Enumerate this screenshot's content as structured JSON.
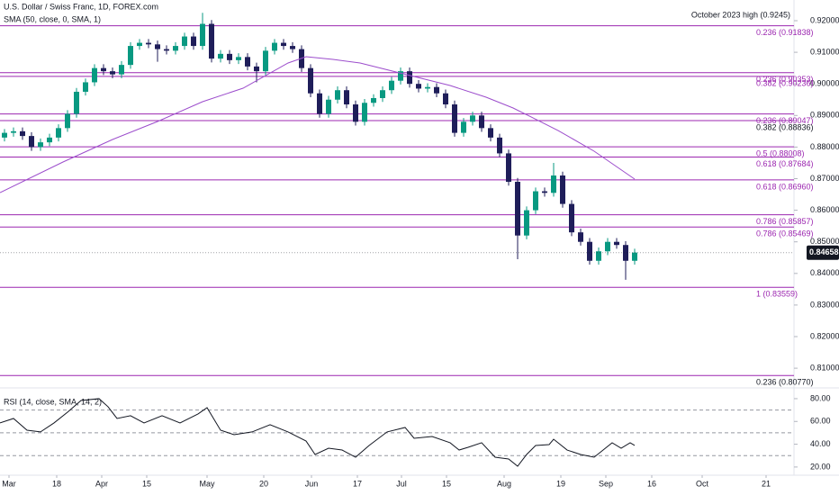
{
  "chart_data": {
    "type": "candlestick",
    "title": "U.S. Dollar / Swiss Franc, 1D, FOREX.com",
    "up_color": "#089981",
    "down_color": "#1f1e5a",
    "xlim": [
      -1,
      175
    ],
    "ylim": [
      0.80405,
      0.92655
    ],
    "yticks": [
      {
        "value": 0.92,
        "label": "0.92000"
      },
      {
        "value": 0.91,
        "label": "0.91000"
      },
      {
        "value": 0.9,
        "label": "0.90000"
      },
      {
        "value": 0.89,
        "label": "0.89000"
      },
      {
        "value": 0.88,
        "label": "0.88000"
      },
      {
        "value": 0.87,
        "label": "0.87000"
      },
      {
        "value": 0.86,
        "label": "0.86000"
      },
      {
        "value": 0.85,
        "label": "0.85000"
      },
      {
        "value": 0.84,
        "label": "0.84000"
      },
      {
        "value": 0.83,
        "label": "0.83000"
      },
      {
        "value": 0.82,
        "label": "0.82000"
      },
      {
        "value": 0.81,
        "label": "0.81000"
      }
    ],
    "xticks": [
      {
        "value": 1,
        "label": "Mar"
      },
      {
        "value": 11.6,
        "label": "18"
      },
      {
        "value": 21.6,
        "label": "Apr"
      },
      {
        "value": 31.6,
        "label": "15"
      },
      {
        "value": 45,
        "label": "May"
      },
      {
        "value": 57.6,
        "label": "20"
      },
      {
        "value": 68.2,
        "label": "Jun"
      },
      {
        "value": 78.4,
        "label": "17"
      },
      {
        "value": 88.2,
        "label": "Jul"
      },
      {
        "value": 98.2,
        "label": "15"
      },
      {
        "value": 111,
        "label": "Aug"
      },
      {
        "value": 123.6,
        "label": "19"
      },
      {
        "value": 133.6,
        "label": "Sep"
      },
      {
        "value": 143.8,
        "label": "16"
      },
      {
        "value": 155,
        "label": "Oct"
      },
      {
        "value": 169.2,
        "label": "21"
      }
    ],
    "candles": [
      {
        "x": 0,
        "open": 0.883,
        "high": 0.8857,
        "low": 0.8818,
        "close": 0.8845
      },
      {
        "x": 2,
        "open": 0.8845,
        "high": 0.8862,
        "low": 0.8833,
        "close": 0.885
      },
      {
        "x": 4,
        "open": 0.885,
        "high": 0.8862,
        "low": 0.8823,
        "close": 0.8835
      },
      {
        "x": 6,
        "open": 0.8835,
        "high": 0.8847,
        "low": 0.8788,
        "close": 0.88
      },
      {
        "x": 8,
        "open": 0.88,
        "high": 0.8827,
        "low": 0.8788,
        "close": 0.8815
      },
      {
        "x": 10,
        "open": 0.8815,
        "high": 0.8842,
        "low": 0.8803,
        "close": 0.883
      },
      {
        "x": 12,
        "open": 0.883,
        "high": 0.8872,
        "low": 0.8818,
        "close": 0.886
      },
      {
        "x": 14,
        "open": 0.886,
        "high": 0.8917,
        "low": 0.8848,
        "close": 0.8905
      },
      {
        "x": 16,
        "open": 0.8905,
        "high": 0.8987,
        "low": 0.8893,
        "close": 0.8975
      },
      {
        "x": 18,
        "open": 0.8975,
        "high": 0.9017,
        "low": 0.8963,
        "close": 0.9005
      },
      {
        "x": 20,
        "open": 0.9005,
        "high": 0.9062,
        "low": 0.8993,
        "close": 0.905
      },
      {
        "x": 22,
        "open": 0.905,
        "high": 0.9062,
        "low": 0.9028,
        "close": 0.904
      },
      {
        "x": 24,
        "open": 0.904,
        "high": 0.9052,
        "low": 0.9018,
        "close": 0.903
      },
      {
        "x": 26,
        "open": 0.903,
        "high": 0.9072,
        "low": 0.9018,
        "close": 0.906
      },
      {
        "x": 28,
        "open": 0.906,
        "high": 0.9132,
        "low": 0.9048,
        "close": 0.912
      },
      {
        "x": 30,
        "open": 0.912,
        "high": 0.9142,
        "low": 0.9108,
        "close": 0.913
      },
      {
        "x": 32,
        "open": 0.913,
        "high": 0.9142,
        "low": 0.9113,
        "close": 0.9125
      },
      {
        "x": 34,
        "open": 0.9125,
        "high": 0.9137,
        "low": 0.907,
        "close": 0.911
      },
      {
        "x": 36,
        "open": 0.911,
        "high": 0.9122,
        "low": 0.9093,
        "close": 0.9105
      },
      {
        "x": 38,
        "open": 0.9105,
        "high": 0.9132,
        "low": 0.9093,
        "close": 0.912
      },
      {
        "x": 40,
        "open": 0.912,
        "high": 0.9162,
        "low": 0.9108,
        "close": 0.915
      },
      {
        "x": 42,
        "open": 0.915,
        "high": 0.9162,
        "low": 0.9108,
        "close": 0.912
      },
      {
        "x": 44,
        "open": 0.912,
        "high": 0.9225,
        "low": 0.9108,
        "close": 0.919
      },
      {
        "x": 46,
        "open": 0.919,
        "high": 0.9202,
        "low": 0.9068,
        "close": 0.908
      },
      {
        "x": 48,
        "open": 0.908,
        "high": 0.9107,
        "low": 0.9068,
        "close": 0.9095
      },
      {
        "x": 50,
        "open": 0.9095,
        "high": 0.9107,
        "low": 0.9063,
        "close": 0.9075
      },
      {
        "x": 52,
        "open": 0.9075,
        "high": 0.9097,
        "low": 0.9063,
        "close": 0.9085
      },
      {
        "x": 54,
        "open": 0.9085,
        "high": 0.9097,
        "low": 0.9043,
        "close": 0.9055
      },
      {
        "x": 56,
        "open": 0.9055,
        "high": 0.9067,
        "low": 0.9005,
        "close": 0.904
      },
      {
        "x": 58,
        "open": 0.904,
        "high": 0.9117,
        "low": 0.9028,
        "close": 0.9105
      },
      {
        "x": 60,
        "open": 0.9105,
        "high": 0.9142,
        "low": 0.9093,
        "close": 0.913
      },
      {
        "x": 62,
        "open": 0.913,
        "high": 0.9142,
        "low": 0.9108,
        "close": 0.912
      },
      {
        "x": 64,
        "open": 0.912,
        "high": 0.9132,
        "low": 0.9098,
        "close": 0.911
      },
      {
        "x": 66,
        "open": 0.911,
        "high": 0.9122,
        "low": 0.9038,
        "close": 0.905
      },
      {
        "x": 68,
        "open": 0.905,
        "high": 0.9062,
        "low": 0.8958,
        "close": 0.897
      },
      {
        "x": 70,
        "open": 0.897,
        "high": 0.8982,
        "low": 0.8893,
        "close": 0.8905
      },
      {
        "x": 72,
        "open": 0.8905,
        "high": 0.8962,
        "low": 0.8893,
        "close": 0.895
      },
      {
        "x": 74,
        "open": 0.895,
        "high": 0.8992,
        "low": 0.8938,
        "close": 0.898
      },
      {
        "x": 76,
        "open": 0.898,
        "high": 0.8992,
        "low": 0.8923,
        "close": 0.8935
      },
      {
        "x": 78,
        "open": 0.8935,
        "high": 0.8947,
        "low": 0.8868,
        "close": 0.888
      },
      {
        "x": 80,
        "open": 0.888,
        "high": 0.8952,
        "low": 0.8868,
        "close": 0.894
      },
      {
        "x": 82,
        "open": 0.894,
        "high": 0.8967,
        "low": 0.8928,
        "close": 0.8955
      },
      {
        "x": 84,
        "open": 0.8955,
        "high": 0.8992,
        "low": 0.8943,
        "close": 0.898
      },
      {
        "x": 86,
        "open": 0.898,
        "high": 0.9022,
        "low": 0.8968,
        "close": 0.901
      },
      {
        "x": 88,
        "open": 0.901,
        "high": 0.9052,
        "low": 0.8998,
        "close": 0.904
      },
      {
        "x": 90,
        "open": 0.904,
        "high": 0.9052,
        "low": 0.8988,
        "close": 0.9
      },
      {
        "x": 92,
        "open": 0.9,
        "high": 0.9012,
        "low": 0.8973,
        "close": 0.8985
      },
      {
        "x": 94,
        "open": 0.8985,
        "high": 0.9002,
        "low": 0.8973,
        "close": 0.899
      },
      {
        "x": 96,
        "open": 0.899,
        "high": 0.9002,
        "low": 0.8958,
        "close": 0.897
      },
      {
        "x": 98,
        "open": 0.897,
        "high": 0.8982,
        "low": 0.8923,
        "close": 0.8935
      },
      {
        "x": 100,
        "open": 0.8935,
        "high": 0.8947,
        "low": 0.8833,
        "close": 0.8845
      },
      {
        "x": 102,
        "open": 0.8845,
        "high": 0.8892,
        "low": 0.8833,
        "close": 0.888
      },
      {
        "x": 104,
        "open": 0.888,
        "high": 0.8912,
        "low": 0.8868,
        "close": 0.89
      },
      {
        "x": 106,
        "open": 0.89,
        "high": 0.8912,
        "low": 0.8848,
        "close": 0.886
      },
      {
        "x": 108,
        "open": 0.886,
        "high": 0.8872,
        "low": 0.8818,
        "close": 0.883
      },
      {
        "x": 110,
        "open": 0.883,
        "high": 0.8842,
        "low": 0.8768,
        "close": 0.878
      },
      {
        "x": 112,
        "open": 0.878,
        "high": 0.8792,
        "low": 0.8678,
        "close": 0.869
      },
      {
        "x": 114,
        "open": 0.869,
        "high": 0.8702,
        "low": 0.8445,
        "close": 0.852
      },
      {
        "x": 116,
        "open": 0.852,
        "high": 0.8612,
        "low": 0.8508,
        "close": 0.86
      },
      {
        "x": 118,
        "open": 0.86,
        "high": 0.8672,
        "low": 0.8588,
        "close": 0.866
      },
      {
        "x": 120,
        "open": 0.866,
        "high": 0.8672,
        "low": 0.8643,
        "close": 0.8655
      },
      {
        "x": 122,
        "open": 0.8655,
        "high": 0.875,
        "low": 0.8643,
        "close": 0.871
      },
      {
        "x": 124,
        "open": 0.871,
        "high": 0.8722,
        "low": 0.8608,
        "close": 0.862
      },
      {
        "x": 126,
        "open": 0.862,
        "high": 0.8632,
        "low": 0.8518,
        "close": 0.853
      },
      {
        "x": 128,
        "open": 0.853,
        "high": 0.8542,
        "low": 0.8488,
        "close": 0.85
      },
      {
        "x": 130,
        "open": 0.85,
        "high": 0.8512,
        "low": 0.8428,
        "close": 0.844
      },
      {
        "x": 132,
        "open": 0.844,
        "high": 0.8482,
        "low": 0.8428,
        "close": 0.847
      },
      {
        "x": 134,
        "open": 0.847,
        "high": 0.8512,
        "low": 0.8458,
        "close": 0.85
      },
      {
        "x": 136,
        "open": 0.85,
        "high": 0.8512,
        "low": 0.8478,
        "close": 0.849
      },
      {
        "x": 138,
        "open": 0.849,
        "high": 0.8502,
        "low": 0.838,
        "close": 0.844
      },
      {
        "x": 140,
        "open": 0.844,
        "high": 0.8478,
        "low": 0.8428,
        "close": 0.8466
      }
    ],
    "sma": {
      "name": "SMA (50, close, 0, SMA, 1)",
      "color": "#9c4dcc",
      "x": [
        -1,
        13,
        24,
        34,
        44,
        53,
        63,
        67,
        73,
        79,
        87,
        99,
        107,
        113,
        117,
        123,
        131,
        140
      ],
      "values": [
        0.86558,
        0.87527,
        0.88239,
        0.88809,
        0.89436,
        0.89863,
        0.90661,
        0.9086,
        0.90775,
        0.90661,
        0.90376,
        0.89949,
        0.89578,
        0.89236,
        0.88952,
        0.88524,
        0.87869,
        0.86986
      ]
    },
    "fib_levels": [
      {
        "value": 0.9245,
        "label": "October 2023 high (0.9245)",
        "color": "#131722"
      },
      {
        "value": 0.91838,
        "label": "0.236 (0.91838)",
        "color": "#9c27b0"
      },
      {
        "value": 0.90353,
        "label": "0.236 (0.90353)",
        "color": "#9c27b0"
      },
      {
        "value": 0.90236,
        "label": "0.382 (0.90236)",
        "color": "#9c27b0"
      },
      {
        "value": 0.89047,
        "label": "0.236 (0.89047)",
        "color": "#9c27b0"
      },
      {
        "value": 0.88836,
        "label": "0.382 (0.88836)",
        "color": "#131722"
      },
      {
        "value": 0.88008,
        "label": "0.5 (0.88008)",
        "color": "#9c27b0"
      },
      {
        "value": 0.87684,
        "label": "0.618 (0.87684)",
        "color": "#9c27b0"
      },
      {
        "value": 0.8696,
        "label": "0.618 (0.86960)",
        "color": "#9c27b0"
      },
      {
        "value": 0.85857,
        "label": "0.786 (0.85857)",
        "color": "#9c27b0"
      },
      {
        "value": 0.85469,
        "label": "0.786 (0.85469)",
        "color": "#9c27b0"
      },
      {
        "value": 0.83559,
        "label": "1 (0.83559)",
        "color": "#9c27b0"
      },
      {
        "value": 0.8077,
        "label": "0.236 (0.80770)",
        "color": "#131722"
      }
    ],
    "last_price": 0.84658,
    "rsi": {
      "name": "RSI (14, close, SMA, 14, 2)",
      "color": "#131722",
      "ylim": [
        13.6,
        84.7
      ],
      "yticks": [
        {
          "value": 80,
          "label": "80.00"
        },
        {
          "value": 60,
          "label": "60.00"
        },
        {
          "value": 40,
          "label": "40.00"
        },
        {
          "value": 20,
          "label": "20.00"
        }
      ],
      "levels": [
        70,
        50,
        30
      ],
      "x": [
        -1,
        2,
        5,
        8,
        11,
        14,
        17,
        21,
        23,
        25,
        28,
        31,
        35,
        39,
        43,
        45,
        48,
        51,
        55,
        59,
        63,
        67,
        69,
        72,
        75,
        78,
        81,
        85,
        89,
        91,
        95,
        99,
        101,
        103,
        106,
        109,
        112,
        114,
        116,
        118,
        121,
        122,
        125,
        128,
        131,
        133,
        135,
        137,
        139,
        140
      ],
      "values": [
        58.7,
        62.6,
        52.3,
        50.8,
        58.7,
        68.1,
        78.4,
        80,
        72.9,
        62.6,
        65.0,
        58.7,
        65.0,
        58.7,
        66.6,
        72.1,
        52.3,
        48.4,
        50.8,
        57.1,
        50.8,
        42.8,
        31.0,
        36.5,
        34.9,
        28.6,
        38.9,
        50.8,
        54.7,
        45.2,
        46.8,
        41.3,
        34.9,
        37.3,
        41.3,
        28.6,
        27.0,
        20.7,
        31.0,
        38.9,
        39.7,
        44.4,
        34.9,
        31.0,
        28.6,
        34.9,
        41.3,
        36.5,
        41.3,
        38.9
      ]
    }
  }
}
